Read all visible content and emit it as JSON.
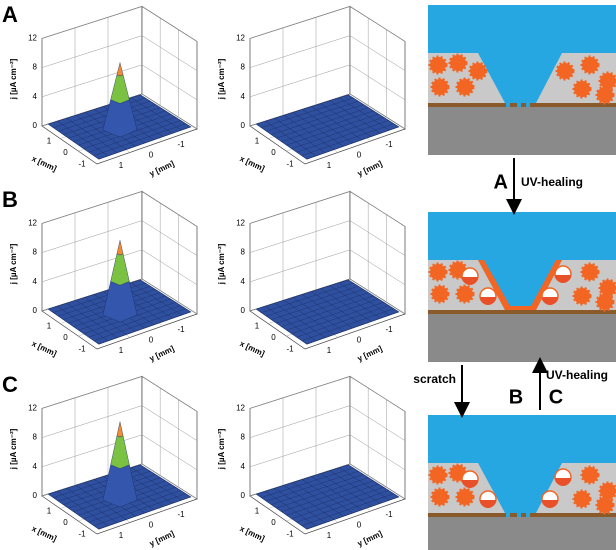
{
  "panels": [
    {
      "label": "A"
    },
    {
      "label": "B"
    },
    {
      "label": "C"
    }
  ],
  "plots": [
    {
      "z_label": "j [µA cm⁻²]",
      "x_label": "x [mm]",
      "y_label": "y [mm]",
      "zticks": [
        0,
        4,
        8,
        12
      ],
      "xticks": [
        1,
        0,
        -1
      ],
      "yticks": [
        1,
        0,
        -1
      ]
    },
    {
      "z_label": "j [µA cm⁻²]",
      "x_label": "x [mm]",
      "y_label": "y [mm]",
      "zticks": [
        0,
        4,
        8,
        12
      ],
      "xticks": [
        1,
        0,
        -1
      ],
      "yticks": [
        1,
        0,
        -1
      ]
    },
    {
      "z_label": "j [µA cm⁻²]",
      "x_label": "x [mm]",
      "y_label": "y [mm]",
      "zticks": [
        0,
        4,
        8,
        12
      ],
      "xticks": [
        1,
        0,
        -1
      ],
      "yticks": [
        1,
        0,
        -1
      ]
    },
    {
      "z_label": "j [µA cm⁻²]",
      "x_label": "x [mm]",
      "y_label": "y [mm]",
      "zticks": [
        0,
        4,
        8,
        12
      ],
      "xticks": [
        1,
        0,
        -1
      ],
      "yticks": [
        1,
        0,
        -1
      ]
    },
    {
      "z_label": "j [µA cm⁻²]",
      "x_label": "x [mm]",
      "y_label": "y [mm]",
      "zticks": [
        0,
        4,
        8,
        12
      ],
      "xticks": [
        1,
        0,
        -1
      ],
      "yticks": [
        1,
        0,
        -1
      ]
    },
    {
      "z_label": "j [µA cm⁻²]",
      "x_label": "x [mm]",
      "y_label": "y [mm]",
      "zticks": [
        0,
        4,
        8,
        12
      ],
      "xticks": [
        1,
        0,
        -1
      ],
      "yticks": [
        1,
        0,
        -1
      ]
    }
  ],
  "scheme": {
    "arrow_1": {
      "letter": "A",
      "text": "UV-healing"
    },
    "arrow_2": {
      "text": "scratch",
      "letter": "B"
    },
    "arrow_3": {
      "letter": "C",
      "text": "UV-healing"
    }
  }
}
